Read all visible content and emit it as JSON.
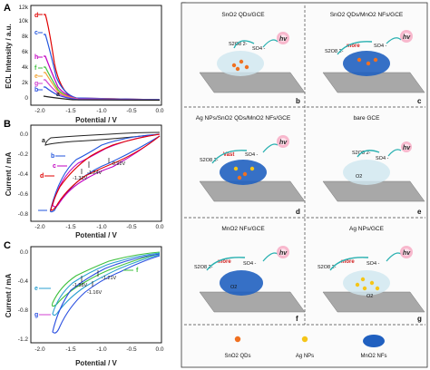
{
  "panels": {
    "A": {
      "letter": "A",
      "ylabel": "ECL Intensity / a.u.",
      "xlabel": "Potential / V",
      "yticks": [
        "0",
        "2k",
        "4k",
        "6k",
        "8k",
        "10k",
        "12k"
      ],
      "xticks": [
        "-2.0",
        "-1.5",
        "-1.0",
        "-0.5",
        "0.0"
      ],
      "curves": [
        "a",
        "b",
        "c",
        "d",
        "e",
        "f",
        "g",
        "h"
      ]
    },
    "B": {
      "letter": "B",
      "ylabel": "Current / mA",
      "xlabel": "Potential / V",
      "yticks": [
        "0.0",
        "-0.2",
        "-0.4",
        "-0.6",
        "-0.8"
      ],
      "xticks": [
        "-2.0",
        "-1.5",
        "-1.0",
        "-0.5",
        "0.0"
      ],
      "curves": [
        "a",
        "b",
        "c",
        "d"
      ],
      "annotations": [
        "-1.24V",
        "-0.92V",
        "-1.31V"
      ]
    },
    "C": {
      "letter": "C",
      "ylabel": "Current / mA",
      "xlabel": "Potential / V",
      "yticks": [
        "0.0",
        "-0.4",
        "-0.8",
        "-1.2"
      ],
      "xticks": [
        "-2.0",
        "-1.5",
        "-1.0",
        "-0.5",
        "0.0"
      ],
      "curves": [
        "e",
        "f",
        "g"
      ],
      "annotations": [
        "-1.38V",
        "-1.21V",
        "-1.16V"
      ]
    },
    "D": {
      "letter": "D",
      "cells": [
        {
          "title": "SnO2 QDs/GCE",
          "letter": "b",
          "left": "S2O8 2-",
          "right": "SO4 -",
          "highlight": ""
        },
        {
          "title": "SnO2 QDs/MnO2 NFs/GCE",
          "letter": "c",
          "left": "S2O8 2-",
          "right": "SO4 -",
          "highlight": "more"
        },
        {
          "title": "Ag NPs/SnO2 QDs/MnO2 NFs/GCE",
          "letter": "d",
          "left": "S2O8 2-",
          "right": "SO4 -",
          "highlight": "Vast"
        },
        {
          "title": "bare GCE",
          "letter": "e",
          "left": "S2O8 2-",
          "right": "SO4 -",
          "highlight": ""
        },
        {
          "title": "MnO2 NFs/GCE",
          "letter": "f",
          "left": "S2O8 2-",
          "right": "SO4 -",
          "highlight": "more"
        },
        {
          "title": "Ag NPs/GCE",
          "letter": "g",
          "left": "S2O8 2-",
          "right": "SO4 -",
          "highlight": "more"
        }
      ],
      "hv": "hv",
      "o2": "O2",
      "legend": [
        "SnO2 QDs",
        "Ag NPs",
        "MnO2 NFs"
      ]
    }
  },
  "colors": {
    "a": "#222222",
    "b": "#2255dd",
    "c": "#c000c0",
    "d": "#e00000",
    "e": "#2a4fe0",
    "f": "#3ec03e",
    "g": "#d040d0",
    "h": "#f0a030"
  }
}
